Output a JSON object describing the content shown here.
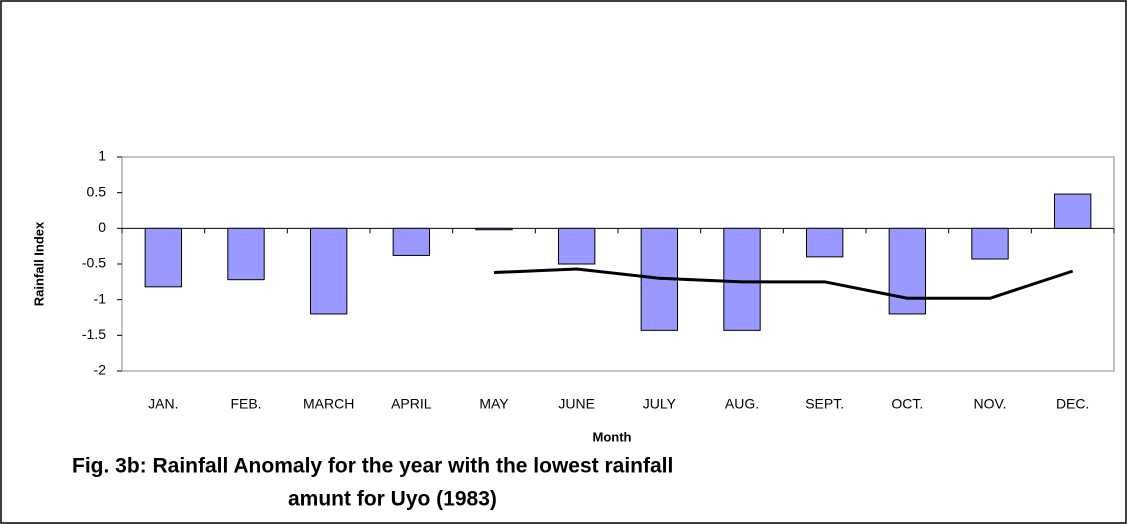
{
  "chart_data": {
    "type": "bar",
    "title": [
      "Fig. 3b: Rainfall Anomaly for the year with the lowest rainfall",
      "amunt for Uyo (1983)"
    ],
    "xlabel": "Month",
    "ylabel": "Rainfall Index",
    "categories": [
      "JAN.",
      "FEB.",
      "MARCH",
      "APRIL",
      "MAY",
      "JUNE",
      "JULY",
      "AUG.",
      "SEPT.",
      "OCT.",
      "NOV.",
      "DEC."
    ],
    "series": [
      {
        "type": "bar",
        "color": "#9999ff",
        "values": [
          -0.82,
          -0.72,
          -1.2,
          -0.38,
          -0.02,
          -0.5,
          -1.43,
          -1.43,
          -0.4,
          -1.2,
          -0.43,
          0.48
        ]
      },
      {
        "type": "line",
        "color": "#000000",
        "values": [
          null,
          null,
          null,
          null,
          -0.62,
          -0.57,
          -0.7,
          -0.75,
          -0.75,
          -0.98,
          -0.98,
          -0.6
        ]
      }
    ],
    "ylim": [
      -2,
      1
    ],
    "yticks": [
      1,
      0.5,
      0,
      -0.5,
      -1,
      -1.5,
      -2
    ]
  }
}
